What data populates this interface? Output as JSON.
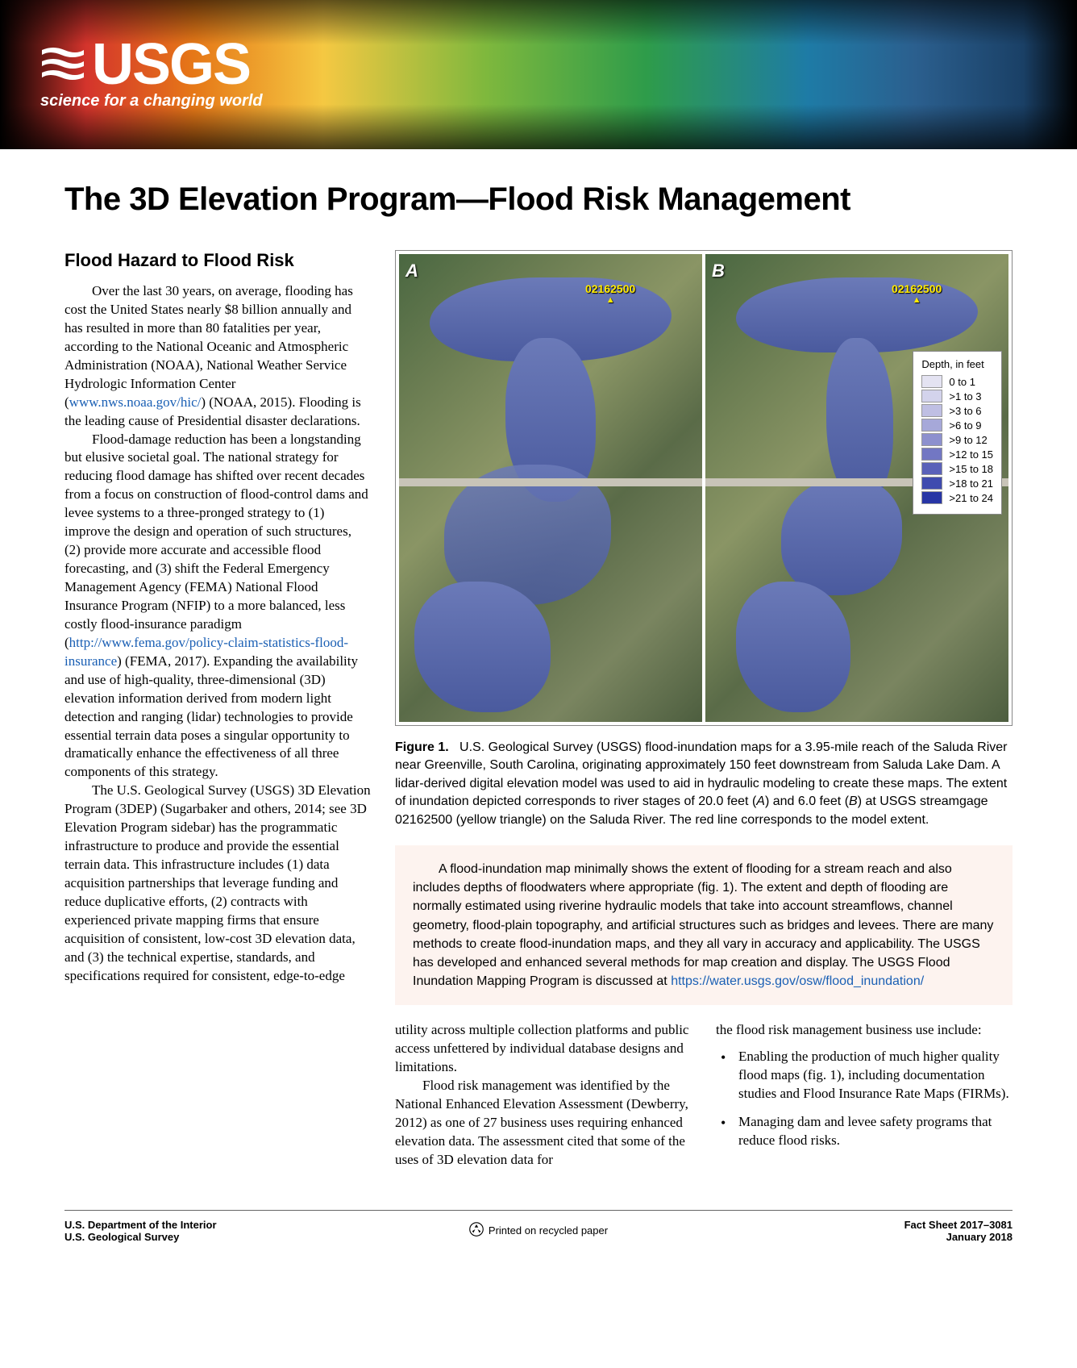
{
  "logo": {
    "wordmark": "USGS",
    "tagline": "science for a changing world"
  },
  "title": "The 3D Elevation Program—Flood Risk Management",
  "section_heading": "Flood Hazard to Flood Risk",
  "body": {
    "p1a": "Over the last 30 years, on average, flooding has cost the United States nearly $8 billion annually and has resulted in more than 80 fatalities per year, according to the National Oceanic and Atmospheric Administration (NOAA), National Weather Service Hydrologic Information Center (",
    "link1": "www.nws.noaa.gov/hic/",
    "p1b": ") (NOAA, 2015). Flooding is the leading cause of Presidential disaster declarations.",
    "p2a": "Flood-damage reduction has been a longstanding but elusive societal goal. The national strategy for reducing flood damage has shifted over recent decades from a focus on construction of flood-control dams and levee systems to a three-pronged strategy to (1) improve the design and operation of such structures, (2) provide more accurate and accessible flood forecasting, and (3) shift the Federal Emergency Management Agency (FEMA) National Flood Insurance Program (NFIP) to a more balanced, less costly flood-insurance paradigm (",
    "link2": "http://www.fema.gov/policy-claim-statistics-flood-insurance",
    "p2b": ") (FEMA, 2017). Expanding the availability and use of high-quality, three-dimensional (3D) elevation information derived from modern light detection and ranging (lidar) technologies to provide essential terrain data poses a singular opportunity to dramatically enhance the effectiveness of all three components of this strategy.",
    "p3": "The U.S. Geological Survey (USGS) 3D Elevation Program (3DEP) (Sugarbaker and others, 2014; see 3D Elevation Program sidebar) has the programmatic infrastructure to produce and provide the essential terrain data. This infrastructure includes (1) data acquisition partnerships that leverage funding and reduce duplicative efforts, (2) contracts with experienced private mapping firms that ensure acquisition of consistent, low-cost 3D elevation data, and (3) the technical expertise, standards, and specifications required for consistent, edge-to-edge"
  },
  "figure": {
    "panel_a": "A",
    "panel_b": "B",
    "gage_id": "02162500",
    "legend_title": "Depth, in feet",
    "legend_items": [
      {
        "label": "0 to 1",
        "color": "#e4e3f2"
      },
      {
        "label": ">1 to 3",
        "color": "#d3d3ec"
      },
      {
        "label": ">3 to 6",
        "color": "#bfbfe3"
      },
      {
        "label": ">6 to 9",
        "color": "#a6a8d9"
      },
      {
        "label": ">9 to 12",
        "color": "#8d90ce"
      },
      {
        "label": ">12 to 15",
        "color": "#7277c3"
      },
      {
        "label": ">15 to 18",
        "color": "#5a61b9"
      },
      {
        "label": ">18 to 21",
        "color": "#3f4baf"
      },
      {
        "label": ">21 to 24",
        "color": "#2735a5"
      }
    ],
    "caption_label": "Figure 1.",
    "caption_a": "U.S. Geological Survey (USGS) flood-inundation maps for a 3.95-mile reach of the Saluda River near Greenville, South Carolina, originating approximately 150 feet downstream from Saluda Lake Dam. A lidar-derived digital elevation model was used to aid in hydraulic modeling to create these maps. The extent of inundation depicted corresponds to river stages of 20.0 feet (",
    "caption_A": "A",
    "caption_b": ") and 6.0 feet (",
    "caption_B": "B",
    "caption_c": ") at USGS streamgage 02162500 (yellow triangle) on the Saluda River. The red line corresponds to the model extent."
  },
  "callout": {
    "text_a": "A flood-inundation map minimally shows the extent of flooding for a stream reach and also includes depths of floodwaters where appropriate (fig. 1). The extent and depth of flooding are normally estimated using riverine hydraulic models that take into account streamflows, channel geometry, flood-plain topography, and artificial structures such as bridges and levees. There are many methods to create flood-inundation maps, and they all vary in accuracy and applicability. The USGS has developed and enhanced several methods for map creation and display. The USGS Flood Inundation Mapping Program is discussed at ",
    "link": "https://water.usgs.gov/osw/flood_inundation/"
  },
  "lower": {
    "left_p1": "utility across multiple collection platforms and public access unfettered by individual database designs and limitations.",
    "left_p2": "Flood risk management was identified by the National Enhanced Elevation Assessment (Dewberry, 2012) as one of 27 business uses requiring enhanced elevation data. The assessment cited that some of the uses of 3D elevation data for",
    "right_intro": "the flood risk management business use include:",
    "bullets": [
      "Enabling the production of much higher quality flood maps (fig. 1), including documentation studies and Flood Insurance Rate Maps (FIRMs).",
      "Managing dam and levee safety programs that reduce flood risks."
    ]
  },
  "footer": {
    "dept1": "U.S. Department of the Interior",
    "dept2": "U.S. Geological Survey",
    "recycled": "Printed on recycled paper",
    "factsheet": "Fact Sheet 2017–3081",
    "date": "January 2018"
  }
}
